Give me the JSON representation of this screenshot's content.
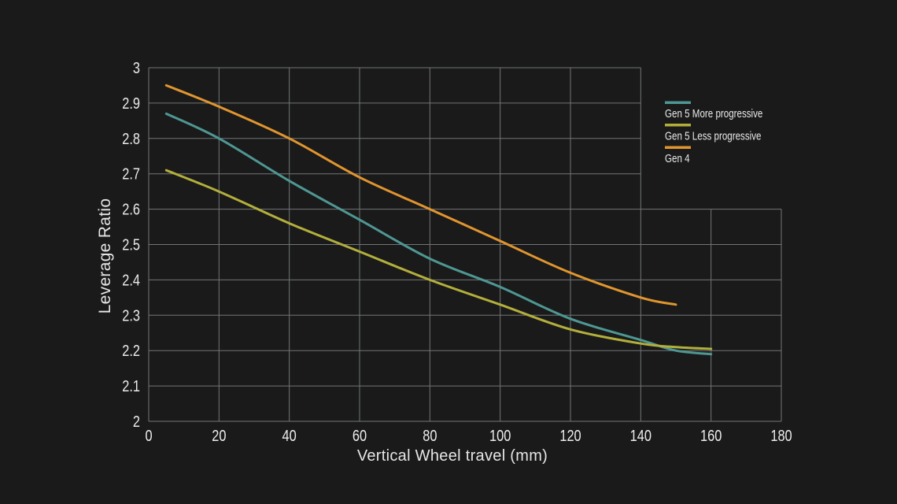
{
  "page": {
    "background": "#1a1a1a",
    "grid_color": "#737577",
    "text_color": "#ececec"
  },
  "chart_data": {
    "type": "line",
    "title": "",
    "xlabel": "Vertical Wheel travel (mm)",
    "ylabel": "Leverage Ratio",
    "xlim": [
      0,
      180
    ],
    "ylim": [
      2,
      3
    ],
    "x_ticks": [
      0,
      20,
      40,
      60,
      80,
      100,
      120,
      140,
      160,
      180
    ],
    "x_tick_labels": [
      "0",
      "20",
      "40",
      "60",
      "80",
      "100",
      "120",
      "140",
      "160",
      "180"
    ],
    "y_ticks": [
      2,
      2.1,
      2.2,
      2.3,
      2.4,
      2.5,
      2.6,
      2.7,
      2.8,
      2.9,
      3
    ],
    "y_tick_labels": [
      "2",
      "2.1",
      "2.2",
      "2.3",
      "2.4",
      "2.5",
      "2.6",
      "2.7",
      "2.8",
      "2.9",
      "3"
    ],
    "grid": true,
    "legend_position": "top-right-inside",
    "series": [
      {
        "name": "Gen 5 More progressive",
        "color": "#4e9793",
        "x": [
          5,
          20,
          40,
          60,
          80,
          100,
          120,
          140,
          150,
          160
        ],
        "y": [
          2.87,
          2.8,
          2.68,
          2.57,
          2.46,
          2.38,
          2.29,
          2.23,
          2.2,
          2.19
        ]
      },
      {
        "name": "Gen 5 Less progressive",
        "color": "#b3af3c",
        "x": [
          5,
          20,
          40,
          60,
          80,
          100,
          120,
          140,
          150,
          160
        ],
        "y": [
          2.71,
          2.65,
          2.56,
          2.48,
          2.4,
          2.33,
          2.26,
          2.22,
          2.21,
          2.205
        ]
      },
      {
        "name": "Gen 4",
        "color": "#e0952f",
        "x": [
          5,
          20,
          40,
          60,
          80,
          100,
          120,
          140,
          150
        ],
        "y": [
          2.95,
          2.89,
          2.8,
          2.69,
          2.6,
          2.51,
          2.42,
          2.35,
          2.33
        ]
      }
    ]
  }
}
